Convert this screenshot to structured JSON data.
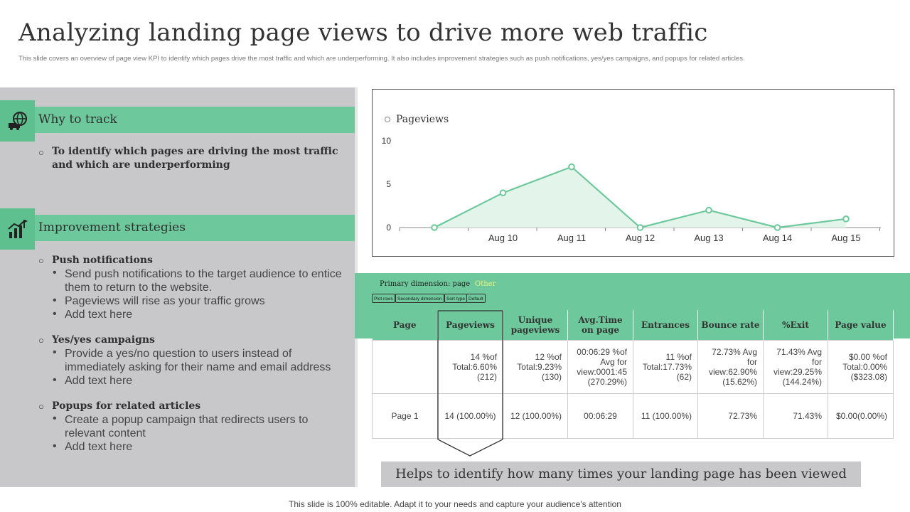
{
  "header": {
    "title": "Analyzing landing page views to drive more web traffic",
    "subtitle": "This slide covers an overview of page view KPI to identify which pages drive the most traffic and which are underperforming.  It also includes improvement strategies such as push notifications, yes/yes campaigns, and popups for related articles."
  },
  "why": {
    "title": "Why to track",
    "icon": "globe-truck-icon",
    "point": "To identify which pages are driving the most traffic and which are underperforming"
  },
  "improvement": {
    "title": "Improvement strategies",
    "icon": "growth-chart-icon",
    "sections": [
      {
        "heading": "Push notifications",
        "bullets": [
          "Send push notifications to the target audience to entice them to return to the website.",
          "Pageviews will rise as your traffic grows",
          "Add text here"
        ]
      },
      {
        "heading": "Yes/yes campaigns",
        "bullets": [
          "Provide a yes/no question to users instead of immediately asking for their name and email address",
          "Add text here"
        ]
      },
      {
        "heading": "Popups for related articles",
        "bullets": [
          "Create a popup campaign that redirects users to relevant content",
          "Add text here"
        ]
      }
    ]
  },
  "chart_data": {
    "type": "area",
    "legend": "Pageviews",
    "series": [
      {
        "name": "Pageviews",
        "values": [
          0,
          4,
          7,
          0,
          2,
          0,
          1
        ]
      }
    ],
    "x": [
      "",
      "Aug 10",
      "Aug 11",
      "Aug 12",
      "Aug 13",
      "Aug 14",
      "Aug 15"
    ],
    "yticks": [
      "10",
      "5",
      "0"
    ],
    "ylim": [
      0,
      10
    ],
    "color": "#6dc99c",
    "fill": "#e3f4ea"
  },
  "report": {
    "primary_label": "Primary dimension: page",
    "primary_value": "Other",
    "buttons": [
      "Plot rows",
      "Secondary dimension",
      "Sort type",
      "Default"
    ],
    "columns": [
      "Page",
      "Pageviews",
      "Unique pageviews",
      "Avg.Time on page",
      "Entrances",
      "Bounce rate",
      "%Exit",
      "Page value"
    ],
    "summary": [
      "",
      "14 %of Total:6.60% (212)",
      "12 %of Total:9.23% (130)",
      "00:06:29 %of Avg for view:0001:45 (270.29%)",
      "11 %of Total:17.73% (62)",
      "72.73% Avg for view:62.90% (15.62%)",
      "71.43% Avg for view:29.25% (144.24%)",
      "$0.00 %of Total:0.00% ($323.08)"
    ],
    "row": [
      "Page 1",
      "14 (100.00%)",
      "12 (100.00%)",
      "00:06:29",
      "11 (100.00%)",
      "72.73%",
      "71.43%",
      "$0.00(0.00%)"
    ]
  },
  "callout": "Helps to identify how many times your landing page has been viewed",
  "footer": "This slide is 100% editable. Adapt it to your needs and capture your audience's attention"
}
